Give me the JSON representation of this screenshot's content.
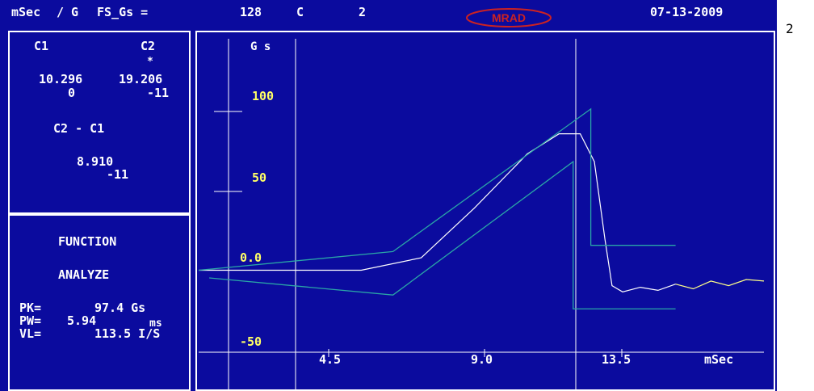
{
  "header": {
    "units": "mSec",
    "per": "/ G",
    "fs_label": "FS_Gs =",
    "fs_value": "128",
    "c_label": "C",
    "c_value": "2",
    "logo": "MRAD",
    "date": "07-13-2009"
  },
  "cursors": {
    "c1_label": "C1",
    "c2_label": "C2",
    "c2_marker": "*",
    "c1_x": "10.296",
    "c2_x": "19.206",
    "c1_y": "0",
    "c2_y": "-11",
    "diff_label": "C2 - C1",
    "diff_x": "8.910",
    "diff_y": "-11"
  },
  "function_panel": {
    "title": "FUNCTION",
    "mode": "ANALYZE",
    "pk_label": "PK=",
    "pk_value": "97.4 Gs",
    "pw_label": "PW=",
    "pw_value": "5.94",
    "pw_unit": "ms",
    "vl_label": "VL=",
    "vl_value": "113.5 I/S"
  },
  "side_number": "2",
  "colors": {
    "background": "#0b0b9e",
    "tolerance": "#2aa6a6",
    "signal": "#ffffff",
    "tail": "#ffff88",
    "yellow_text": "#ffff66",
    "logo": "#cc2222"
  },
  "chart_data": {
    "type": "line",
    "ylabel": "G s",
    "xlabel": "mSec",
    "y_ticks": [
      "100",
      "50",
      "0.0",
      "-50"
    ],
    "x_ticks": [
      "4.5",
      "9.0",
      "13.5"
    ],
    "xlim": [
      0,
      16
    ],
    "ylim": [
      -55,
      118
    ],
    "cursor_positions_ms": [
      1.6,
      11.8
    ],
    "series": [
      {
        "values": [
          [
            0,
            0
          ],
          [
            2,
            0
          ],
          [
            4.6,
            0
          ],
          [
            6.3,
            8
          ],
          [
            7.8,
            40
          ],
          [
            9.3,
            75
          ],
          [
            10.2,
            88
          ],
          [
            10.8,
            88
          ],
          [
            11.2,
            70
          ],
          [
            11.5,
            20
          ],
          [
            11.7,
            -10
          ],
          [
            12.0,
            -14
          ],
          [
            12.5,
            -11
          ],
          [
            13.0,
            -13
          ],
          [
            13.5,
            -9
          ]
        ]
      },
      {
        "values": [
          [
            13.5,
            -9
          ],
          [
            14.0,
            -12
          ],
          [
            14.5,
            -7
          ],
          [
            15.0,
            -10
          ],
          [
            15.5,
            -6
          ],
          [
            16.0,
            -7
          ]
        ]
      },
      {
        "values": [
          [
            0,
            0
          ],
          [
            5.5,
            12
          ],
          [
            11.1,
            104
          ],
          [
            11.1,
            16
          ],
          [
            13.5,
            16
          ]
        ]
      },
      {
        "values": [
          [
            0.3,
            -5
          ],
          [
            5.5,
            -16
          ],
          [
            10.6,
            70
          ],
          [
            10.6,
            -25
          ],
          [
            13.5,
            -25
          ]
        ]
      }
    ]
  }
}
